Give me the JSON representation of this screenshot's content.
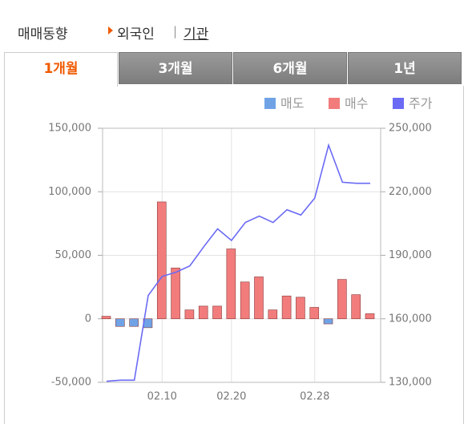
{
  "header": {
    "title": "매매동향",
    "options": [
      "외국인",
      "기관"
    ]
  },
  "tabs": [
    "1개월",
    "3개월",
    "6개월",
    "1년"
  ],
  "chart_data": {
    "type": "bar-line",
    "categories": [
      null,
      null,
      null,
      null,
      "02.10",
      null,
      null,
      null,
      null,
      "02.20",
      null,
      null,
      null,
      null,
      null,
      "02.28",
      null,
      null,
      null,
      null
    ],
    "series": [
      {
        "name": "매도",
        "color": "#6fa3e6",
        "values": [
          null,
          -6000,
          -6000,
          -7000,
          null,
          null,
          null,
          null,
          null,
          null,
          null,
          null,
          null,
          null,
          null,
          null,
          -4000,
          null,
          null,
          null
        ]
      },
      {
        "name": "매수",
        "color": "#f27c7c",
        "values": [
          2000,
          null,
          null,
          null,
          92000,
          40000,
          7000,
          10000,
          10000,
          55000,
          29000,
          33000,
          7000,
          18000,
          17000,
          9000,
          null,
          31000,
          19000,
          4000
        ]
      },
      {
        "name": "주가",
        "color": "#6a6af5",
        "axis": "y2",
        "values": [
          130500,
          131000,
          131000,
          171000,
          180000,
          182000,
          185000,
          194000,
          202500,
          197000,
          205500,
          208500,
          205500,
          211500,
          209000,
          217000,
          242000,
          224500,
          224000,
          224000
        ]
      }
    ],
    "ylim": [
      -50000,
      150000
    ],
    "yticks": [
      {
        "value": -50000,
        "label": "-50,000"
      },
      0,
      {
        "value": 50000,
        "label": "50,000"
      },
      {
        "value": 100000,
        "label": "100,000"
      },
      {
        "value": 150000,
        "label": "150,000"
      }
    ],
    "y2lim": [
      130000,
      250000
    ],
    "y2ticks": [
      {
        "value": 130000,
        "label": "130,000"
      },
      {
        "value": 160000,
        "label": "160,000"
      },
      {
        "value": 190000,
        "label": "190,000"
      },
      {
        "value": 220000,
        "label": "220,000"
      },
      {
        "value": 250000,
        "label": "250,000"
      }
    ],
    "grid": true
  }
}
